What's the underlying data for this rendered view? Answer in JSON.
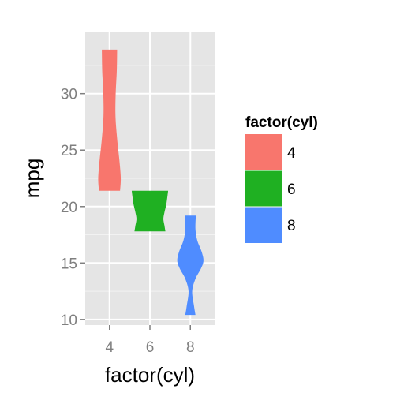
{
  "chart_data": {
    "type": "violin",
    "xlabel": "factor(cyl)",
    "ylabel": "mpg",
    "categories": [
      "4",
      "6",
      "8"
    ],
    "ylim": [
      9.5,
      35.5
    ],
    "yticks": [
      10,
      15,
      20,
      25,
      30
    ],
    "grid": true,
    "legend": {
      "title": "factor(cyl)",
      "placement": "right",
      "entries": [
        "4",
        "6",
        "8"
      ]
    },
    "series": [
      {
        "category": "4",
        "color": "#F8766D",
        "min": 21.4,
        "max": 33.9,
        "profile": [
          [
            21.4,
            0.58
          ],
          [
            22.5,
            0.62
          ],
          [
            24.0,
            0.55
          ],
          [
            26.0,
            0.42
          ],
          [
            28.0,
            0.33
          ],
          [
            30.0,
            0.34
          ],
          [
            32.0,
            0.4
          ],
          [
            33.9,
            0.42
          ]
        ]
      },
      {
        "category": "6",
        "color": "#1FB022",
        "min": 17.8,
        "max": 21.4,
        "profile": [
          [
            17.8,
            0.85
          ],
          [
            18.3,
            0.8
          ],
          [
            18.9,
            0.74
          ],
          [
            19.5,
            0.8
          ],
          [
            20.2,
            0.9
          ],
          [
            21.0,
            0.97
          ],
          [
            21.4,
            1.0
          ]
        ]
      },
      {
        "category": "8",
        "color": "#4F8CFF",
        "min": 10.4,
        "max": 19.2,
        "profile": [
          [
            10.4,
            0.28
          ],
          [
            11.2,
            0.2
          ],
          [
            12.5,
            0.1
          ],
          [
            13.6,
            0.28
          ],
          [
            14.5,
            0.58
          ],
          [
            15.2,
            0.72
          ],
          [
            16.0,
            0.62
          ],
          [
            17.0,
            0.38
          ],
          [
            18.0,
            0.28
          ],
          [
            19.2,
            0.3
          ]
        ]
      }
    ]
  }
}
